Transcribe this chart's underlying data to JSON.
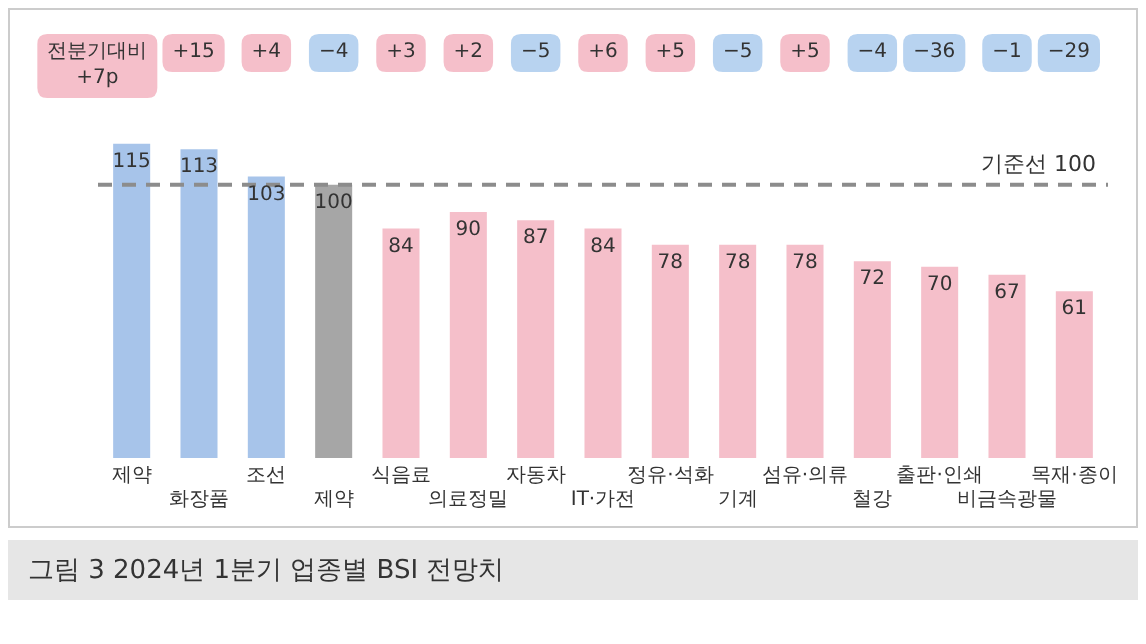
{
  "chart_data": {
    "type": "bar",
    "title": "그림 3  2024년 1분기 업종별 BSI 전망치",
    "categories": [
      "제약",
      "화장품",
      "조선",
      "제약",
      "식음료",
      "의료정밀",
      "자동차",
      "IT·가전",
      "정유·석화",
      "기계",
      "섬유·의류",
      "철강",
      "출판·인쇄",
      "비금속광물",
      "목재·종이"
    ],
    "values": [
      115,
      113,
      103,
      100,
      84,
      90,
      87,
      84,
      78,
      78,
      78,
      72,
      70,
      67,
      61
    ],
    "colors": [
      "#a7c4ea",
      "#a7c4ea",
      "#a7c4ea",
      "#a6a6a6",
      "#f5bfca",
      "#f5bfca",
      "#f5bfca",
      "#f5bfca",
      "#f5bfca",
      "#f5bfca",
      "#f5bfca",
      "#f5bfca",
      "#f5bfca",
      "#f5bfca",
      "#f5bfca"
    ],
    "data_labels": true,
    "tick_labels": "x",
    "grid": false,
    "legend": false,
    "ref_lines": [
      {
        "axis": "y",
        "value": 100,
        "label": "기준선 100",
        "color": "#8c8c8c",
        "line_style": "dashed"
      }
    ],
    "annotations": [
      "전분기대비 +7p",
      "+15",
      "+4",
      "−4",
      "+3",
      "+2",
      "−5",
      "+6",
      "+5",
      "−5",
      "+5",
      "−4",
      "−36",
      "−1",
      "−29"
    ]
  }
}
